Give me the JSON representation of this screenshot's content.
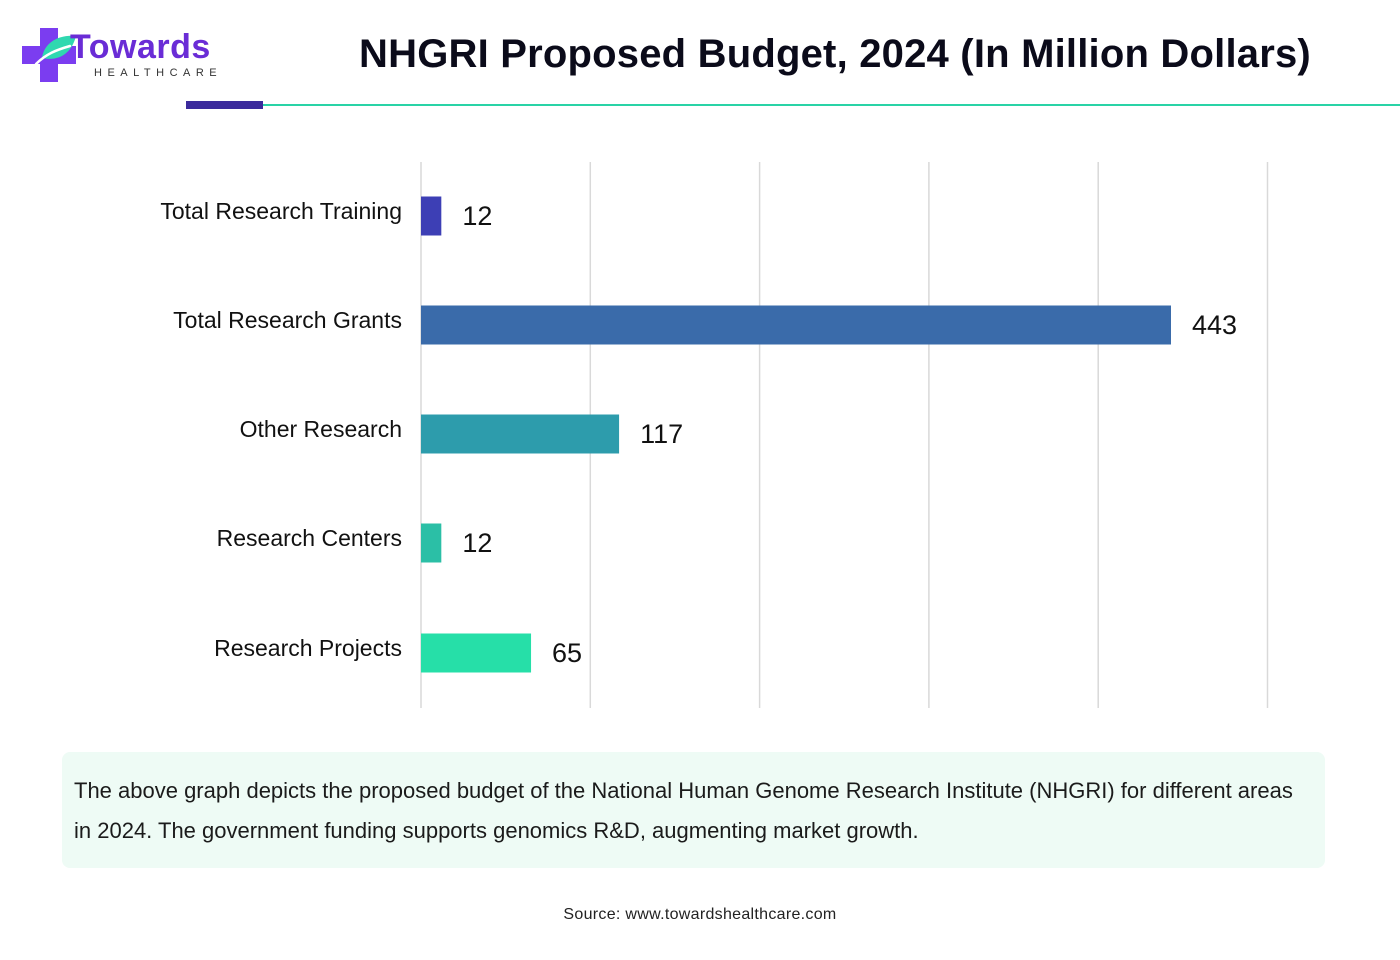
{
  "brand": {
    "name": "Towards",
    "tagline": "HEALTHCARE",
    "colors": {
      "primary": "#6a2cd6",
      "accent": "#29d3a6",
      "rule": "#3b2a9c"
    }
  },
  "chart_data": {
    "type": "bar",
    "orientation": "horizontal",
    "title": "NHGRI Proposed Budget, 2024 (In Million Dollars)",
    "xlabel": "",
    "ylabel": "",
    "categories": [
      "Total Research Training",
      "Total Research Grants",
      "Other Research",
      "Research Centers",
      "Research Projects"
    ],
    "values": [
      12,
      443,
      117,
      12,
      65
    ],
    "bar_colors": [
      "#3d3fb5",
      "#3a6baa",
      "#2d9cac",
      "#2bbfa6",
      "#26dfa8"
    ],
    "xlim": [
      0,
      500
    ],
    "grid": true,
    "legend": "none",
    "data_labels": true
  },
  "description": "The above graph depicts the proposed budget of the National Human Genome Research Institute (NHGRI) for different areas in 2024. The government funding supports genomics R&D, augmenting market growth.",
  "source": "Source: www.towardshealthcare.com"
}
